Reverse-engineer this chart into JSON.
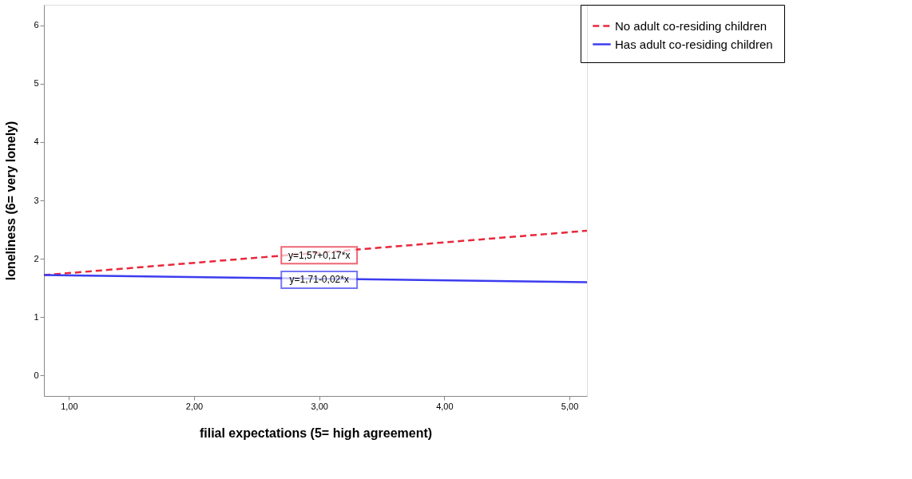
{
  "chart_data": {
    "type": "line",
    "xlabel": "filial expectations (5= high agreement)",
    "ylabel": "loneliness (6= very lonely)",
    "x": [
      0.8,
      5.14
    ],
    "series": [
      {
        "name": "No adult co-residing children",
        "color": "#e8283c",
        "line_style": "dashed",
        "values": [
          1.72,
          2.48
        ]
      },
      {
        "name": "Has adult co-residing children",
        "color": "#3c3cf0",
        "line_style": "solid",
        "values": [
          1.72,
          1.6
        ]
      }
    ],
    "xlim": [
      0.8,
      5.14
    ],
    "ylim": [
      -0.35,
      6.35
    ],
    "xticks": [
      {
        "value": 1,
        "label": "1,00"
      },
      {
        "value": 2,
        "label": "2,00"
      },
      {
        "value": 3,
        "label": "3,00"
      },
      {
        "value": 4,
        "label": "4,00"
      },
      {
        "value": 5,
        "label": "5,00"
      }
    ],
    "yticks": [
      0,
      1,
      2,
      3,
      4,
      5,
      6
    ],
    "annotations": [
      {
        "text": "y=1,57+0,17*x",
        "x": 3.0,
        "y": 2.06
      },
      {
        "text": "y=1,71-0,02*x",
        "x": 3.0,
        "y": 1.64
      }
    ],
    "grid": false,
    "legend": "top right"
  }
}
